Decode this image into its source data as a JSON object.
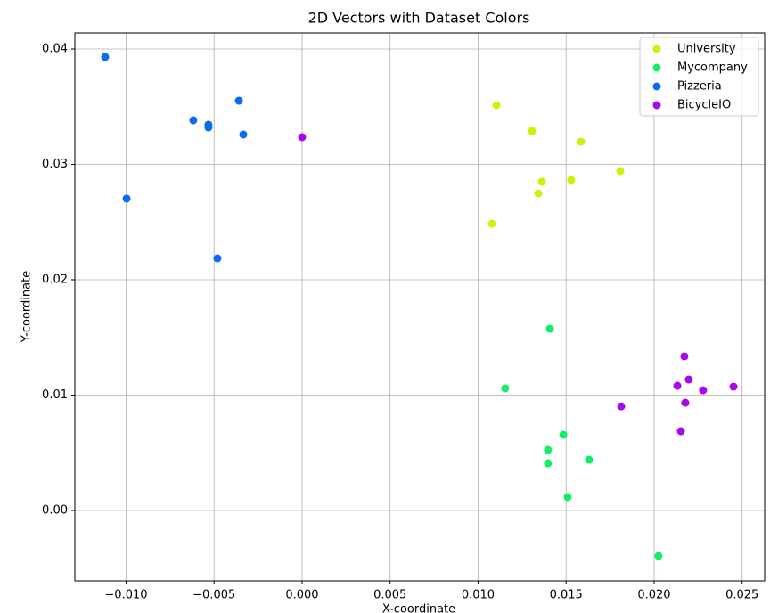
{
  "chart_data": {
    "type": "scatter",
    "title": "2D Vectors with Dataset Colors",
    "x_label": "X-coordinate",
    "y_label": "Y-coordinate",
    "xlim": [
      -0.01291,
      0.02628
    ],
    "ylim": [
      -0.0061,
      0.04139
    ],
    "xticks": [
      {
        "value": -0.01,
        "label": "−0.010"
      },
      {
        "value": -0.005,
        "label": "−0.005"
      },
      {
        "value": 0,
        "label": "0.000"
      },
      {
        "value": 0.005,
        "label": "0.005"
      },
      {
        "value": 0.01,
        "label": "0.010"
      },
      {
        "value": 0.015,
        "label": "0.015"
      },
      {
        "value": 0.02,
        "label": "0.020"
      },
      {
        "value": 0.025,
        "label": "0.025"
      }
    ],
    "yticks": [
      {
        "value": 0,
        "label": "0.00"
      },
      {
        "value": 0.01,
        "label": "0.01"
      },
      {
        "value": 0.02,
        "label": "0.02"
      },
      {
        "value": 0.03,
        "label": "0.03"
      },
      {
        "value": 0.04,
        "label": "0.04"
      }
    ],
    "grid": true,
    "legend": "upper right",
    "series": [
      {
        "name": "University",
        "color": "#ccf20a",
        "x": [
          0.01104,
          0.01306,
          0.01585,
          0.01362,
          0.01529,
          0.01342,
          0.01808,
          0.01078
        ],
        "values": [
          0.03514,
          0.0329,
          0.03197,
          0.02849,
          0.02865,
          0.02749,
          0.02942,
          0.02486
        ]
      },
      {
        "name": "Mycompany",
        "color": "#12ee66",
        "x": [
          0.01408,
          0.01154,
          0.01484,
          0.01397,
          0.01397,
          0.0163,
          0.01509,
          0.02025
        ],
        "values": [
          0.01575,
          0.01058,
          0.00656,
          0.00525,
          0.00409,
          0.0044,
          0.00116,
          -0.00394
        ]
      },
      {
        "name": "Pizzeria",
        "color": "#0a6cf0",
        "x": [
          -0.01119,
          -0.00997,
          -0.00618,
          -0.00532,
          -0.00532,
          -0.00359,
          -0.00334,
          -0.00481
        ],
        "values": [
          0.03931,
          0.02703,
          0.03382,
          0.03344,
          0.0332,
          0.03552,
          0.03259,
          0.02185
        ]
      },
      {
        "name": "BicycleIO",
        "color": "#a60ae6",
        "x": [
          0.0,
          0.02172,
          0.02132,
          0.02197,
          0.02278,
          0.02451,
          0.02177,
          0.01813,
          0.02152
        ],
        "values": [
          0.03236,
          0.01336,
          0.01081,
          0.01135,
          0.01042,
          0.01073,
          0.00934,
          0.00903,
          0.00687
        ]
      }
    ]
  }
}
